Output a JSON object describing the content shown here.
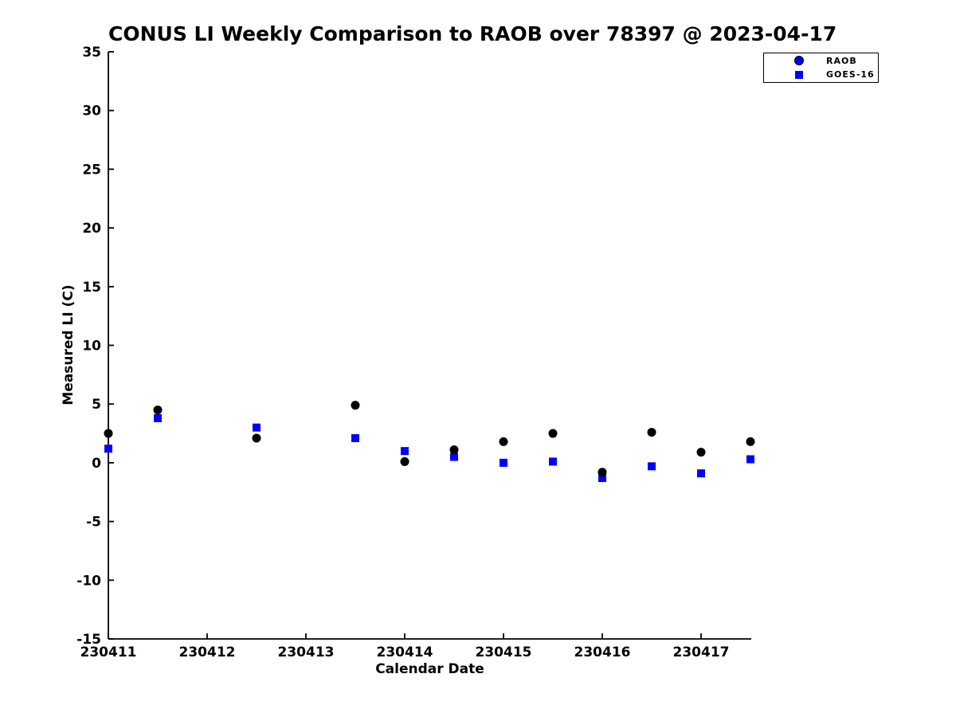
{
  "chart_data": {
    "type": "scatter",
    "title": "CONUS LI Weekly Comparison to RAOB over 78397 @ 2023-04-17",
    "xlabel": "Calendar Date",
    "ylabel": "Measured LI (C)",
    "xlim": [
      230411,
      230417.5
    ],
    "ylim": [
      -15,
      35
    ],
    "xticks": [
      230411,
      230412,
      230413,
      230414,
      230415,
      230416,
      230417
    ],
    "xtick_labels": [
      "230411",
      "230412",
      "230413",
      "230414",
      "230415",
      "230416",
      "230417"
    ],
    "yticks": [
      -15,
      -10,
      -5,
      0,
      5,
      10,
      15,
      20,
      25,
      30,
      35
    ],
    "ytick_labels": [
      "-15",
      "-10",
      "-5",
      "0",
      "5",
      "10",
      "15",
      "20",
      "25",
      "30",
      "35"
    ],
    "grid": false,
    "legend_position": "top-right",
    "x": [
      230411,
      230411.5,
      230412.5,
      230413.5,
      230414,
      230414.5,
      230415,
      230415.5,
      230416,
      230416.5,
      230417,
      230417.5
    ],
    "series": [
      {
        "name": "RAOB",
        "marker": "circle",
        "color": "#000000",
        "legend_color": "#0000e0",
        "values": [
          2.5,
          4.5,
          2.1,
          4.9,
          0.1,
          1.1,
          1.8,
          2.5,
          -0.8,
          2.6,
          0.9,
          1.8
        ]
      },
      {
        "name": "GOES-16",
        "marker": "square",
        "color": "#0000ff",
        "legend_color": "#0000ff",
        "values": [
          1.2,
          3.8,
          3.0,
          2.1,
          1.0,
          0.5,
          0.0,
          0.1,
          -1.3,
          -0.3,
          -0.9,
          0.3
        ]
      }
    ]
  }
}
